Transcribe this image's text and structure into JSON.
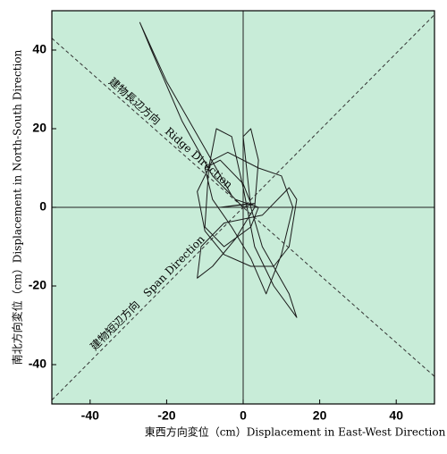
{
  "chart_data": {
    "type": "line",
    "xlabel": "東西方向変位（cm）Displacement in East-West Direction",
    "ylabel": "南北方向変位（cm）Displacement in North-South Direction",
    "xlim": [
      -50,
      50
    ],
    "ylim": [
      -50,
      50
    ],
    "xticks": [
      -40,
      -20,
      0,
      20,
      40
    ],
    "yticks": [
      -40,
      -20,
      0,
      20,
      40
    ],
    "color": "#1a1a1a",
    "background": "#c8ecd8",
    "annotations": [
      {
        "text": "建物長辺方向　Ridge Direction",
        "slope": -0.86
      },
      {
        "text": "建物短辺方向　Span Direction",
        "slope": 0.98
      }
    ],
    "x": [
      0,
      -3,
      -10,
      -20,
      -27,
      -24,
      -16,
      -8,
      -2,
      4,
      2,
      -5,
      -10,
      -9,
      -7,
      -3,
      0,
      3,
      8,
      14,
      12,
      5,
      2,
      0,
      2,
      4,
      3,
      -2,
      -8,
      -12,
      -11,
      -5,
      5,
      12,
      14,
      12,
      8,
      2,
      -5,
      -10,
      -12,
      -8,
      -4,
      4,
      10,
      13,
      10,
      6,
      2,
      -3,
      -8,
      -10,
      -6,
      0,
      2,
      -6,
      3,
      0
    ],
    "values": [
      0,
      3,
      15,
      32,
      47,
      40,
      22,
      8,
      2,
      0,
      -5,
      -10,
      -5,
      10,
      20,
      18,
      5,
      -10,
      -20,
      -28,
      -22,
      -10,
      0,
      18,
      20,
      12,
      0,
      -8,
      -15,
      -18,
      -10,
      -4,
      -2,
      5,
      2,
      -10,
      -15,
      -15,
      -12,
      -6,
      4,
      12,
      14,
      10,
      8,
      0,
      -12,
      -22,
      -13,
      -5,
      2,
      10,
      12,
      6,
      1,
      0,
      1,
      0
    ]
  }
}
